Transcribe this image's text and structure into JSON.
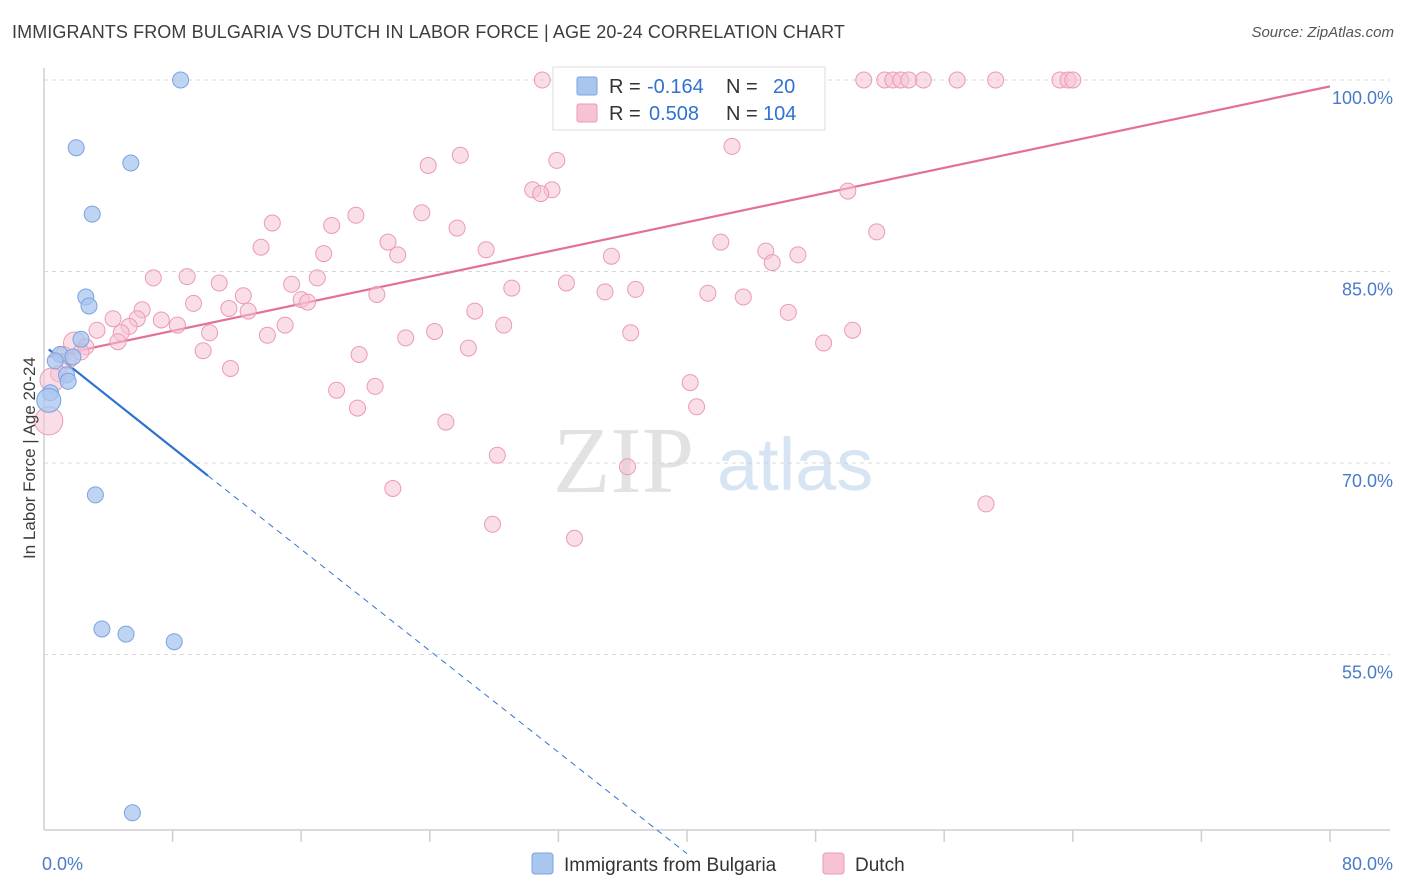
{
  "title": "IMMIGRANTS FROM BULGARIA VS DUTCH IN LABOR FORCE | AGE 20-24 CORRELATION CHART",
  "source": "Source: ZipAtlas.com",
  "watermark": {
    "zip": "ZIP",
    "atlas": "atlas"
  },
  "colors": {
    "blue_fill": "#a9c6ef",
    "blue_stroke": "#7aa3df",
    "blue_line": "#2f72d2",
    "pink_fill": "#f6c3d3",
    "pink_stroke": "#ec9ab4",
    "pink_line": "#e2709a",
    "tick_label": "#4a7bc8",
    "grid": "#d8d8d8"
  },
  "stats_legend": {
    "rows": [
      {
        "r_label": "R =",
        "r_value": "-0.164",
        "n_label": "N =",
        "n_value": "20"
      },
      {
        "r_label": "R =",
        "r_value": "0.508",
        "n_label": "N =",
        "n_value": "104"
      }
    ]
  },
  "chart_data": {
    "type": "scatter",
    "title": "IMMIGRANTS FROM BULGARIA VS DUTCH IN LABOR FORCE | AGE 20-24 CORRELATION CHART",
    "xlabel": "",
    "ylabel": "In Labor Force | Age 20-24",
    "xlim": [
      0,
      80
    ],
    "ylim": [
      40,
      102
    ],
    "x_tick_labels": [
      {
        "value": 0,
        "label": "0.0%"
      },
      {
        "value": 80,
        "label": "80.0%"
      }
    ],
    "y_ticks": [
      {
        "value": 100,
        "label": "100.0%"
      },
      {
        "value": 85,
        "label": "85.0%"
      },
      {
        "value": 70,
        "label": "70.0%"
      },
      {
        "value": 55,
        "label": "55.0%"
      }
    ],
    "x_minor_ticks": [
      8,
      16,
      24,
      32,
      40,
      48,
      56,
      64,
      72
    ],
    "grid": true,
    "legend_position": "bottom",
    "series": [
      {
        "name": "Immigrants from Bulgaria",
        "color": "#a9c6ef",
        "points": [
          {
            "x": 8.5,
            "y": 100,
            "s": 8
          },
          {
            "x": 2.0,
            "y": 94.7,
            "s": 8
          },
          {
            "x": 5.4,
            "y": 93.5,
            "s": 8
          },
          {
            "x": 3.0,
            "y": 89.5,
            "s": 8
          },
          {
            "x": 2.6,
            "y": 83.0,
            "s": 8
          },
          {
            "x": 2.8,
            "y": 82.3,
            "s": 8
          },
          {
            "x": 2.3,
            "y": 79.7,
            "s": 8
          },
          {
            "x": 1.0,
            "y": 78.5,
            "s": 8
          },
          {
            "x": 1.8,
            "y": 78.3,
            "s": 8
          },
          {
            "x": 0.7,
            "y": 78.0,
            "s": 8
          },
          {
            "x": 1.4,
            "y": 76.9,
            "s": 8
          },
          {
            "x": 1.5,
            "y": 76.4,
            "s": 8
          },
          {
            "x": 0.4,
            "y": 75.5,
            "s": 8
          },
          {
            "x": 0.3,
            "y": 74.9,
            "s": 12
          },
          {
            "x": 3.2,
            "y": 67.5,
            "s": 8
          },
          {
            "x": 3.6,
            "y": 57.0,
            "s": 8
          },
          {
            "x": 5.1,
            "y": 56.6,
            "s": 8
          },
          {
            "x": 8.1,
            "y": 56.0,
            "s": 8
          },
          {
            "x": 5.5,
            "y": 42.6,
            "s": 8
          }
        ],
        "trend": {
          "x1": 0.3,
          "y1": 78.9,
          "x2": 10.2,
          "y2": 69.0,
          "dash_to_x": 40.0,
          "dash_to_y": 39.4
        }
      },
      {
        "name": "Dutch",
        "color": "#f6c3d3",
        "points": [
          {
            "x": 31.0,
            "y": 100,
            "s": 8
          },
          {
            "x": 35.5,
            "y": 100,
            "s": 8
          },
          {
            "x": 48.0,
            "y": 100,
            "s": 8
          },
          {
            "x": 51.0,
            "y": 100,
            "s": 8
          },
          {
            "x": 52.3,
            "y": 100,
            "s": 8
          },
          {
            "x": 52.8,
            "y": 100,
            "s": 8
          },
          {
            "x": 53.3,
            "y": 100,
            "s": 8
          },
          {
            "x": 53.8,
            "y": 100,
            "s": 8
          },
          {
            "x": 54.7,
            "y": 100,
            "s": 8
          },
          {
            "x": 56.8,
            "y": 100,
            "s": 8
          },
          {
            "x": 59.2,
            "y": 100,
            "s": 8
          },
          {
            "x": 63.2,
            "y": 100,
            "s": 8
          },
          {
            "x": 63.7,
            "y": 100,
            "s": 8
          },
          {
            "x": 64.0,
            "y": 100,
            "s": 8
          },
          {
            "x": 42.8,
            "y": 94.8,
            "s": 8
          },
          {
            "x": 25.9,
            "y": 94.1,
            "s": 8
          },
          {
            "x": 31.9,
            "y": 93.7,
            "s": 8
          },
          {
            "x": 23.9,
            "y": 93.3,
            "s": 8
          },
          {
            "x": 30.4,
            "y": 91.4,
            "s": 8
          },
          {
            "x": 31.6,
            "y": 91.4,
            "s": 8
          },
          {
            "x": 30.9,
            "y": 91.1,
            "s": 8
          },
          {
            "x": 50.0,
            "y": 91.3,
            "s": 8
          },
          {
            "x": 19.4,
            "y": 89.4,
            "s": 8
          },
          {
            "x": 23.5,
            "y": 89.6,
            "s": 8
          },
          {
            "x": 14.2,
            "y": 88.8,
            "s": 8
          },
          {
            "x": 17.9,
            "y": 88.6,
            "s": 8
          },
          {
            "x": 25.7,
            "y": 88.4,
            "s": 8
          },
          {
            "x": 51.8,
            "y": 88.1,
            "s": 8
          },
          {
            "x": 21.4,
            "y": 87.3,
            "s": 8
          },
          {
            "x": 42.1,
            "y": 87.3,
            "s": 8
          },
          {
            "x": 13.5,
            "y": 86.9,
            "s": 8
          },
          {
            "x": 27.5,
            "y": 86.7,
            "s": 8
          },
          {
            "x": 44.9,
            "y": 86.6,
            "s": 8
          },
          {
            "x": 17.4,
            "y": 86.4,
            "s": 8
          },
          {
            "x": 22.0,
            "y": 86.3,
            "s": 8
          },
          {
            "x": 35.3,
            "y": 86.2,
            "s": 8
          },
          {
            "x": 46.9,
            "y": 86.3,
            "s": 8
          },
          {
            "x": 45.3,
            "y": 85.7,
            "s": 8
          },
          {
            "x": 6.8,
            "y": 84.5,
            "s": 8
          },
          {
            "x": 8.9,
            "y": 84.6,
            "s": 8
          },
          {
            "x": 17.0,
            "y": 84.5,
            "s": 8
          },
          {
            "x": 10.9,
            "y": 84.1,
            "s": 8
          },
          {
            "x": 15.4,
            "y": 84.0,
            "s": 8
          },
          {
            "x": 32.5,
            "y": 84.1,
            "s": 8
          },
          {
            "x": 29.1,
            "y": 83.7,
            "s": 8
          },
          {
            "x": 36.8,
            "y": 83.6,
            "s": 8
          },
          {
            "x": 34.9,
            "y": 83.4,
            "s": 8
          },
          {
            "x": 41.3,
            "y": 83.3,
            "s": 8
          },
          {
            "x": 20.7,
            "y": 83.2,
            "s": 8
          },
          {
            "x": 43.5,
            "y": 83.0,
            "s": 8
          },
          {
            "x": 12.4,
            "y": 83.1,
            "s": 8
          },
          {
            "x": 16.0,
            "y": 82.8,
            "s": 8
          },
          {
            "x": 16.4,
            "y": 82.6,
            "s": 8
          },
          {
            "x": 9.3,
            "y": 82.5,
            "s": 8
          },
          {
            "x": 11.5,
            "y": 82.1,
            "s": 8
          },
          {
            "x": 6.1,
            "y": 82.0,
            "s": 8
          },
          {
            "x": 12.7,
            "y": 81.9,
            "s": 8
          },
          {
            "x": 26.8,
            "y": 81.9,
            "s": 8
          },
          {
            "x": 46.3,
            "y": 81.8,
            "s": 8
          },
          {
            "x": 4.3,
            "y": 81.3,
            "s": 8
          },
          {
            "x": 5.8,
            "y": 81.3,
            "s": 8
          },
          {
            "x": 7.3,
            "y": 81.2,
            "s": 8
          },
          {
            "x": 8.3,
            "y": 80.8,
            "s": 8
          },
          {
            "x": 15.0,
            "y": 80.8,
            "s": 8
          },
          {
            "x": 28.6,
            "y": 80.8,
            "s": 8
          },
          {
            "x": 5.3,
            "y": 80.7,
            "s": 8
          },
          {
            "x": 3.3,
            "y": 80.4,
            "s": 8
          },
          {
            "x": 4.8,
            "y": 80.2,
            "s": 8
          },
          {
            "x": 10.3,
            "y": 80.2,
            "s": 8
          },
          {
            "x": 24.3,
            "y": 80.3,
            "s": 8
          },
          {
            "x": 36.5,
            "y": 80.2,
            "s": 8
          },
          {
            "x": 50.3,
            "y": 80.4,
            "s": 8
          },
          {
            "x": 13.9,
            "y": 80.0,
            "s": 8
          },
          {
            "x": 22.5,
            "y": 79.8,
            "s": 8
          },
          {
            "x": 4.6,
            "y": 79.5,
            "s": 8
          },
          {
            "x": 1.9,
            "y": 79.4,
            "s": 11
          },
          {
            "x": 2.6,
            "y": 79.1,
            "s": 8
          },
          {
            "x": 48.5,
            "y": 79.4,
            "s": 8
          },
          {
            "x": 26.4,
            "y": 79.0,
            "s": 8
          },
          {
            "x": 9.9,
            "y": 78.8,
            "s": 8
          },
          {
            "x": 2.3,
            "y": 78.7,
            "s": 8
          },
          {
            "x": 1.2,
            "y": 78.5,
            "s": 8
          },
          {
            "x": 19.6,
            "y": 78.5,
            "s": 8
          },
          {
            "x": 1.5,
            "y": 78.0,
            "s": 8
          },
          {
            "x": 11.6,
            "y": 77.4,
            "s": 8
          },
          {
            "x": 0.9,
            "y": 77.0,
            "s": 8
          },
          {
            "x": 40.2,
            "y": 76.3,
            "s": 8
          },
          {
            "x": 20.6,
            "y": 76.0,
            "s": 8
          },
          {
            "x": 18.2,
            "y": 75.7,
            "s": 8
          },
          {
            "x": 0.5,
            "y": 76.5,
            "s": 12
          },
          {
            "x": 40.6,
            "y": 74.4,
            "s": 8
          },
          {
            "x": 19.5,
            "y": 74.3,
            "s": 8
          },
          {
            "x": 0.3,
            "y": 73.3,
            "s": 14
          },
          {
            "x": 25.0,
            "y": 73.2,
            "s": 8
          },
          {
            "x": 28.2,
            "y": 70.6,
            "s": 8
          },
          {
            "x": 36.3,
            "y": 69.7,
            "s": 8
          },
          {
            "x": 21.7,
            "y": 68.0,
            "s": 8
          },
          {
            "x": 58.6,
            "y": 66.8,
            "s": 8
          },
          {
            "x": 27.9,
            "y": 65.2,
            "s": 8
          },
          {
            "x": 33.0,
            "y": 64.1,
            "s": 8
          }
        ],
        "trend": {
          "x1": 0.3,
          "y1": 78.3,
          "x2": 80.0,
          "y2": 99.5
        }
      }
    ]
  },
  "bottom_legend": {
    "items": [
      {
        "label": "Immigrants from Bulgaria"
      },
      {
        "label": "Dutch"
      }
    ]
  }
}
